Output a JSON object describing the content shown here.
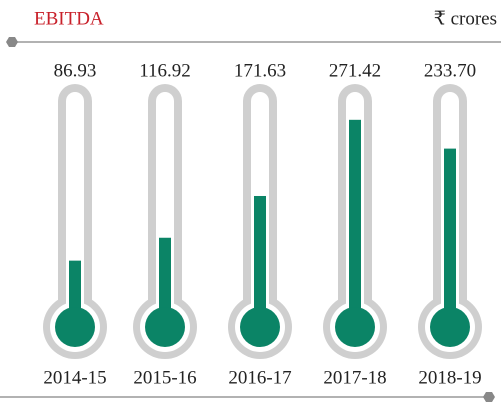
{
  "chart_data": {
    "type": "thermometer",
    "title": "EBITDA",
    "unit_label": "₹ crores",
    "categories": [
      "2014-15",
      "2015-16",
      "2016-17",
      "2017-18",
      "2018-19"
    ],
    "values": [
      86.93,
      116.92,
      171.63,
      271.42,
      233.7
    ],
    "value_labels": [
      "86.93",
      "116.92",
      "171.63",
      "271.42",
      "233.70"
    ],
    "color": "#0b8466",
    "ylim": [
      0,
      300
    ]
  }
}
